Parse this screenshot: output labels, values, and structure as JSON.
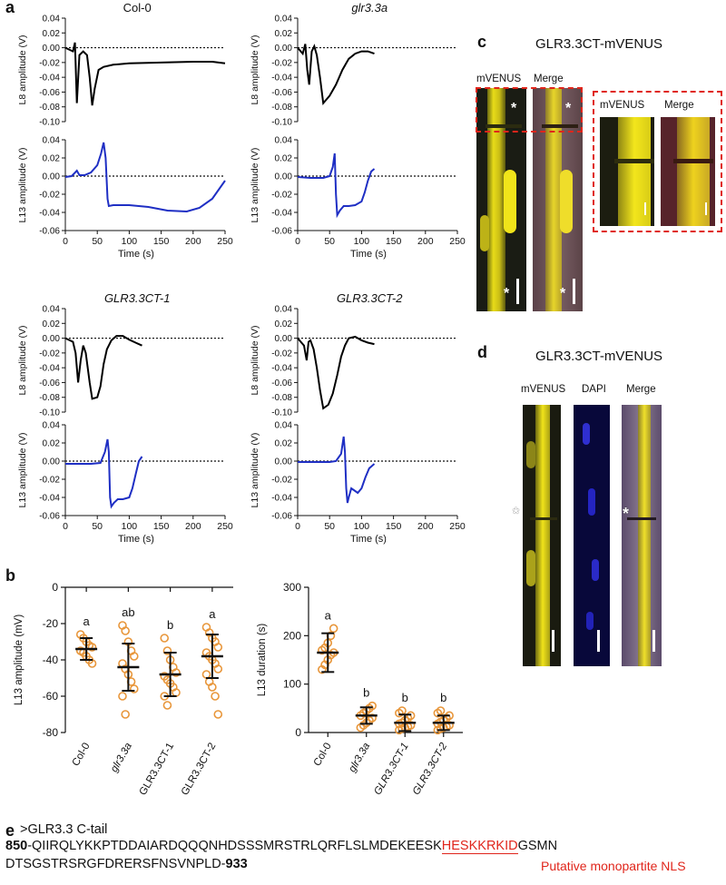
{
  "panel_letters": {
    "a": "a",
    "b": "b",
    "c": "c",
    "d": "d",
    "e": "e"
  },
  "chart_data": [
    {
      "type": "line",
      "title": "Col-0",
      "ylabel": "L8 amplitude (V)",
      "ylim": [
        -0.1,
        0.04
      ],
      "yticks": [
        "0.04",
        "0.02",
        "0.00",
        "-0.02",
        "-0.04",
        "-0.06",
        "-0.08",
        "-0.10"
      ],
      "xlim": [
        0,
        250
      ],
      "italic_title": false,
      "series": [
        {
          "color": "#000000",
          "points": [
            [
              0,
              0
            ],
            [
              12,
              -0.005
            ],
            [
              15,
              0.007
            ],
            [
              18,
              -0.075
            ],
            [
              22,
              -0.01
            ],
            [
              28,
              -0.005
            ],
            [
              34,
              -0.01
            ],
            [
              38,
              -0.04
            ],
            [
              42,
              -0.078
            ],
            [
              46,
              -0.055
            ],
            [
              52,
              -0.03
            ],
            [
              60,
              -0.026
            ],
            [
              75,
              -0.023
            ],
            [
              100,
              -0.021
            ],
            [
              150,
              -0.02
            ],
            [
              200,
              -0.019
            ],
            [
              230,
              -0.019
            ],
            [
              250,
              -0.021
            ]
          ]
        }
      ]
    },
    {
      "type": "line",
      "ylabel": "L13 amplitude (V)",
      "xlabel": "Time (s)",
      "ylim": [
        -0.06,
        0.04
      ],
      "yticks": [
        "0.04",
        "0.02",
        "0.00",
        "-0.02",
        "-0.04",
        "-0.06"
      ],
      "xlim": [
        0,
        250
      ],
      "xticks": [
        "0",
        "50",
        "100",
        "150",
        "200",
        "250"
      ],
      "series": [
        {
          "color": "#1f2fc4",
          "points": [
            [
              0,
              -0.001
            ],
            [
              10,
              0
            ],
            [
              18,
              0.006
            ],
            [
              22,
              0.001
            ],
            [
              30,
              0.001
            ],
            [
              40,
              0.004
            ],
            [
              50,
              0.012
            ],
            [
              56,
              0.025
            ],
            [
              60,
              0.037
            ],
            [
              63,
              0.02
            ],
            [
              66,
              -0.025
            ],
            [
              68,
              -0.033
            ],
            [
              75,
              -0.032
            ],
            [
              100,
              -0.032
            ],
            [
              130,
              -0.034
            ],
            [
              160,
              -0.038
            ],
            [
              190,
              -0.039
            ],
            [
              210,
              -0.035
            ],
            [
              230,
              -0.025
            ],
            [
              250,
              -0.005
            ]
          ]
        }
      ]
    },
    {
      "type": "line",
      "title": "glr3.3a",
      "ylabel": "L8 amplitude (V)",
      "ylim": [
        -0.1,
        0.04
      ],
      "yticks": [
        "0.04",
        "0.02",
        "0.00",
        "-0.02",
        "-0.04",
        "-0.06",
        "-0.08",
        "-0.10"
      ],
      "xlim": [
        0,
        250
      ],
      "italic_title": true,
      "series": [
        {
          "color": "#000000",
          "points": [
            [
              0,
              0
            ],
            [
              8,
              -0.008
            ],
            [
              12,
              0.005
            ],
            [
              15,
              -0.03
            ],
            [
              18,
              -0.05
            ],
            [
              22,
              -0.005
            ],
            [
              26,
              0.002
            ],
            [
              30,
              -0.01
            ],
            [
              35,
              -0.04
            ],
            [
              40,
              -0.075
            ],
            [
              50,
              -0.065
            ],
            [
              60,
              -0.05
            ],
            [
              70,
              -0.03
            ],
            [
              80,
              -0.015
            ],
            [
              90,
              -0.008
            ],
            [
              100,
              -0.005
            ],
            [
              110,
              -0.005
            ],
            [
              120,
              -0.008
            ]
          ]
        }
      ]
    },
    {
      "type": "line",
      "ylabel": "L13 amplitude (V)",
      "xlabel": "Time (s)",
      "ylim": [
        -0.06,
        0.04
      ],
      "yticks": [
        "0.04",
        "0.02",
        "0.00",
        "-0.02",
        "-0.04",
        "-0.06"
      ],
      "xlim": [
        0,
        250
      ],
      "xticks": [
        "0",
        "50",
        "100",
        "150",
        "200",
        "250"
      ],
      "series": [
        {
          "color": "#1f2fc4",
          "points": [
            [
              0,
              -0.001
            ],
            [
              20,
              -0.002
            ],
            [
              40,
              -0.002
            ],
            [
              50,
              0
            ],
            [
              55,
              0.01
            ],
            [
              58,
              0.025
            ],
            [
              60,
              -0.02
            ],
            [
              62,
              -0.043
            ],
            [
              66,
              -0.038
            ],
            [
              72,
              -0.033
            ],
            [
              80,
              -0.033
            ],
            [
              90,
              -0.032
            ],
            [
              100,
              -0.028
            ],
            [
              105,
              -0.018
            ],
            [
              110,
              -0.005
            ],
            [
              115,
              0.005
            ],
            [
              120,
              0.008
            ]
          ]
        }
      ]
    },
    {
      "type": "line",
      "title": "GLR3.3CT-1",
      "ylabel": "L8 amplitude (V)",
      "ylim": [
        -0.1,
        0.04
      ],
      "yticks": [
        "0.04",
        "0.02",
        "0.00",
        "-0.02",
        "-0.04",
        "-0.06",
        "-0.08",
        "-0.10"
      ],
      "xlim": [
        0,
        250
      ],
      "italic_title": true,
      "series": [
        {
          "color": "#000000",
          "points": [
            [
              0,
              0
            ],
            [
              12,
              -0.005
            ],
            [
              16,
              -0.02
            ],
            [
              20,
              -0.06
            ],
            [
              24,
              -0.03
            ],
            [
              28,
              -0.01
            ],
            [
              32,
              -0.02
            ],
            [
              38,
              -0.06
            ],
            [
              42,
              -0.082
            ],
            [
              50,
              -0.08
            ],
            [
              55,
              -0.065
            ],
            [
              60,
              -0.035
            ],
            [
              65,
              -0.015
            ],
            [
              72,
              -0.003
            ],
            [
              80,
              0.003
            ],
            [
              90,
              0.003
            ],
            [
              100,
              -0.002
            ],
            [
              110,
              -0.006
            ],
            [
              120,
              -0.01
            ]
          ]
        }
      ]
    },
    {
      "type": "line",
      "ylabel": "L13 amplitude (V)",
      "xlabel": "Time (s)",
      "ylim": [
        -0.06,
        0.04
      ],
      "yticks": [
        "0.04",
        "0.02",
        "0.00",
        "-0.02",
        "-0.04",
        "-0.06"
      ],
      "xlim": [
        0,
        250
      ],
      "xticks": [
        "0",
        "50",
        "100",
        "150",
        "200",
        "250"
      ],
      "series": [
        {
          "color": "#1f2fc4",
          "points": [
            [
              0,
              -0.003
            ],
            [
              20,
              -0.003
            ],
            [
              40,
              -0.003
            ],
            [
              55,
              -0.002
            ],
            [
              62,
              0.01
            ],
            [
              66,
              0.024
            ],
            [
              68,
              0.01
            ],
            [
              70,
              -0.04
            ],
            [
              72,
              -0.05
            ],
            [
              76,
              -0.046
            ],
            [
              82,
              -0.042
            ],
            [
              90,
              -0.042
            ],
            [
              100,
              -0.04
            ],
            [
              105,
              -0.03
            ],
            [
              110,
              -0.015
            ],
            [
              115,
              0
            ],
            [
              120,
              0.005
            ]
          ]
        }
      ]
    },
    {
      "type": "line",
      "title": "GLR3.3CT-2",
      "ylabel": "L8 amplitude (V)",
      "ylim": [
        -0.1,
        0.04
      ],
      "yticks": [
        "0.04",
        "0.02",
        "0.00",
        "-0.02",
        "-0.04",
        "-0.06",
        "-0.08",
        "-0.10"
      ],
      "xlim": [
        0,
        250
      ],
      "italic_title": true,
      "series": [
        {
          "color": "#000000",
          "points": [
            [
              0,
              0
            ],
            [
              10,
              -0.01
            ],
            [
              14,
              -0.03
            ],
            [
              17,
              -0.005
            ],
            [
              20,
              -0.003
            ],
            [
              25,
              -0.015
            ],
            [
              30,
              -0.04
            ],
            [
              35,
              -0.07
            ],
            [
              40,
              -0.095
            ],
            [
              48,
              -0.09
            ],
            [
              55,
              -0.075
            ],
            [
              62,
              -0.05
            ],
            [
              68,
              -0.025
            ],
            [
              74,
              -0.01
            ],
            [
              80,
              0
            ],
            [
              90,
              0.002
            ],
            [
              100,
              -0.003
            ],
            [
              110,
              -0.006
            ],
            [
              120,
              -0.008
            ]
          ]
        }
      ]
    },
    {
      "type": "line",
      "ylabel": "L13 amplitude (V)",
      "xlabel": "Time (s)",
      "ylim": [
        -0.06,
        0.04
      ],
      "yticks": [
        "0.04",
        "0.02",
        "0.00",
        "-0.02",
        "-0.04",
        "-0.06"
      ],
      "xlim": [
        0,
        250
      ],
      "xticks": [
        "0",
        "50",
        "100",
        "150",
        "200",
        "250"
      ],
      "series": [
        {
          "color": "#1f2fc4",
          "points": [
            [
              0,
              -0.001
            ],
            [
              30,
              -0.001
            ],
            [
              50,
              -0.001
            ],
            [
              60,
              0
            ],
            [
              68,
              0.008
            ],
            [
              72,
              0.027
            ],
            [
              74,
              0.01
            ],
            [
              76,
              -0.03
            ],
            [
              78,
              -0.046
            ],
            [
              80,
              -0.04
            ],
            [
              84,
              -0.03
            ],
            [
              88,
              -0.032
            ],
            [
              94,
              -0.035
            ],
            [
              100,
              -0.03
            ],
            [
              106,
              -0.018
            ],
            [
              112,
              -0.008
            ],
            [
              120,
              -0.003
            ]
          ]
        }
      ]
    },
    {
      "type": "scatter",
      "ylabel": "L13 amplitude (mV)",
      "ylim": [
        -80,
        0
      ],
      "yticks": [
        "0",
        "-20",
        "-40",
        "-60",
        "-80"
      ],
      "categories": [
        "Col-0",
        "glr3.3a",
        "GLR3.3CT-1",
        "GLR3.3CT-2"
      ],
      "italic": [
        false,
        true,
        false,
        false
      ],
      "letters": [
        "a",
        "ab",
        "b",
        "a"
      ],
      "means": [
        -34,
        -44,
        -48,
        -38
      ],
      "sd": [
        6,
        13,
        12,
        12
      ],
      "points": [
        [
          -26,
          -28,
          -30,
          -32,
          -33,
          -35,
          -36,
          -38,
          -40,
          -42
        ],
        [
          -21,
          -24,
          -30,
          -35,
          -38,
          -42,
          -45,
          -48,
          -52,
          -56,
          -60,
          -70
        ],
        [
          -28,
          -35,
          -40,
          -44,
          -47,
          -49,
          -51,
          -53,
          -55,
          -58,
          -60,
          -65
        ],
        [
          -22,
          -25,
          -28,
          -30,
          -33,
          -36,
          -38,
          -40,
          -42,
          -45,
          -48,
          -52,
          -55,
          -60,
          -70
        ]
      ]
    },
    {
      "type": "scatter",
      "ylabel": "L13 duration (s)",
      "ylim": [
        0,
        300
      ],
      "yticks": [
        "0",
        "100",
        "200",
        "300"
      ],
      "categories": [
        "Col-0",
        "glr3.3a",
        "GLR3.3CT-1",
        "GLR3.3CT-2"
      ],
      "italic": [
        false,
        true,
        true,
        true
      ],
      "letters": [
        "a",
        "b",
        "b",
        "b"
      ],
      "means": [
        165,
        35,
        20,
        20
      ],
      "sd": [
        40,
        17,
        17,
        15
      ],
      "points": [
        [
          130,
          140,
          150,
          160,
          165,
          170,
          175,
          185,
          200,
          215
        ],
        [
          10,
          15,
          20,
          25,
          30,
          35,
          40,
          45,
          50,
          55
        ],
        [
          5,
          8,
          10,
          12,
          15,
          18,
          20,
          25,
          30,
          35,
          40,
          45
        ],
        [
          5,
          8,
          10,
          12,
          15,
          18,
          22,
          25,
          30,
          35,
          40,
          45
        ]
      ]
    }
  ],
  "panel_c": {
    "title": "GLR3.3CT-mVENUS",
    "label_mvenus": "mVENUS",
    "label_merge": "Merge",
    "inset_mvenus": "mVENUS",
    "inset_merge": "Merge",
    "asterisk": "*"
  },
  "panel_d": {
    "title": "GLR3.3CT-mVENUS",
    "label_mvenus": "mVENUS",
    "label_dapi": "DAPI",
    "label_merge": "Merge",
    "asterisk": "*"
  },
  "panel_e": {
    "header": ">GLR3.3 C-tail",
    "start": "850",
    "seq1a": "-QIIRQLYKKPTDDAIARDQQQNHDSSSMRSTRLQRFLSLMDEKEESK",
    "nls": "HESKKRKID",
    "seq1b": "GSMN",
    "seq2": "DTSGSTRSRGFDRERSFNSVNPLD-",
    "end": "933",
    "nls_label": "Putative monopartite NLS"
  },
  "colors": {
    "black_trace": "#000000",
    "blue_trace": "#1f2fc4",
    "orange_point": "#e8963a",
    "nls": "#e0251b",
    "inset_border": "#e0251b",
    "yellow": "#f2e51a",
    "dapi": "#1414c8"
  }
}
